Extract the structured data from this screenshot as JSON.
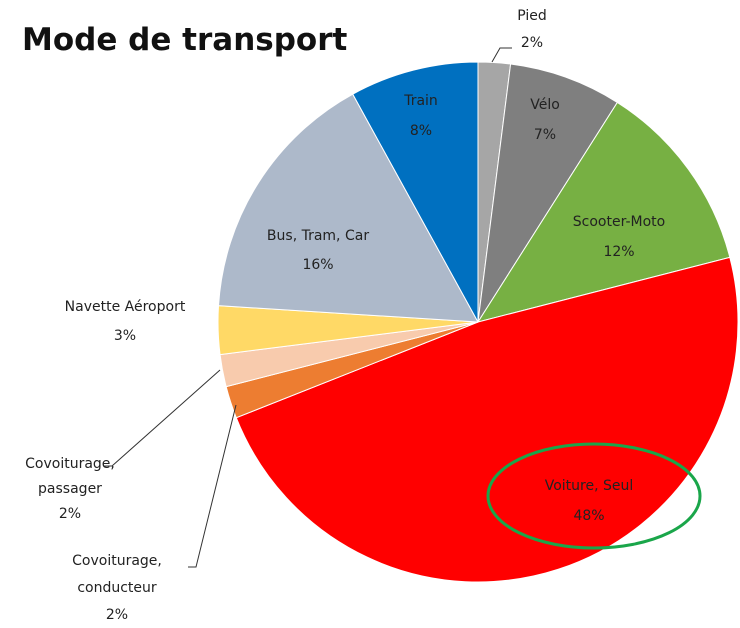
{
  "chart_data": {
    "type": "pie",
    "title": "Mode de transport",
    "categories": [
      "Pied",
      "Vélo",
      "Scooter-Moto",
      "Voiture, Seul",
      "Covoiturage, conducteur",
      "Covoiturage, passager",
      "Navette Aéroport",
      "Bus, Tram, Car",
      "Train"
    ],
    "values": [
      2,
      7,
      12,
      48,
      2,
      2,
      3,
      16,
      8
    ],
    "value_labels": [
      "2%",
      "7%",
      "12%",
      "48%",
      "2%",
      "2%",
      "3%",
      "16%",
      "8%"
    ],
    "colors": [
      "#a6a6a6",
      "#7f7f7f",
      "#77b043",
      "#ff0000",
      "#ed7d31",
      "#f8cbad",
      "#ffd966",
      "#adb9ca",
      "#0070c0"
    ]
  }
}
